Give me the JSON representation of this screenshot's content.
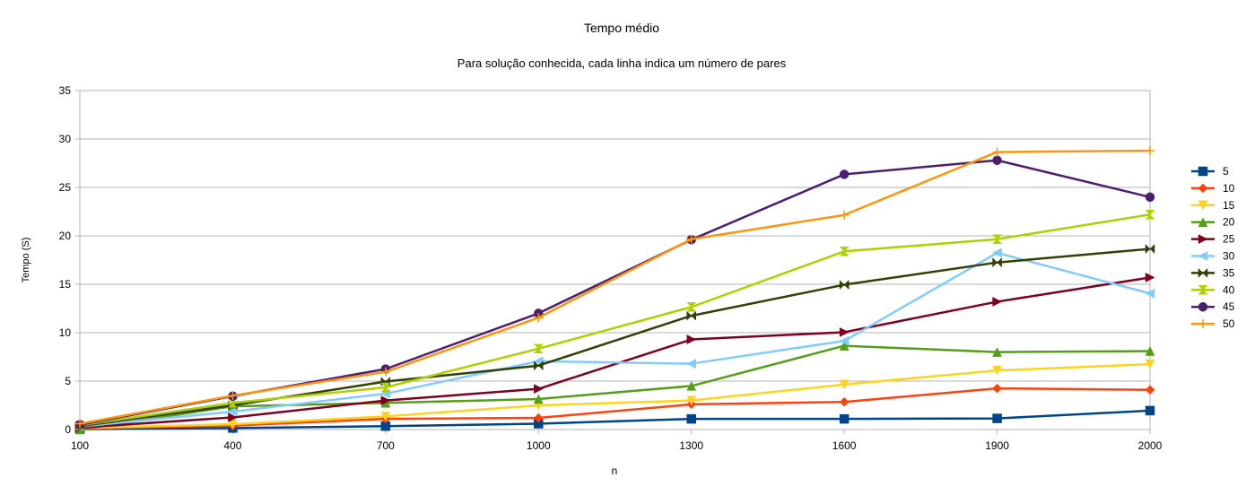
{
  "chart_data": {
    "type": "line",
    "title": "Tempo médio",
    "subtitle": "Para solução conhecida, cada linha indica um número de pares",
    "xlabel": "n",
    "ylabel": "Tempo (S)",
    "x": [
      "100",
      "400",
      "700",
      "1000",
      "1300",
      "1600",
      "1900",
      "2000"
    ],
    "ylim": [
      0,
      35
    ],
    "yticks": [
      "0",
      "5",
      "10",
      "15",
      "20",
      "25",
      "30",
      "35"
    ],
    "grid": "horizontal",
    "legend_position": "right",
    "series": [
      {
        "name": "5",
        "color": "#004586",
        "marker": "square",
        "values": [
          0.05,
          0.15,
          0.35,
          0.6,
          1.1,
          1.1,
          1.15,
          1.95
        ]
      },
      {
        "name": "10",
        "color": "#ff420e",
        "marker": "diamond",
        "values": [
          0.1,
          0.4,
          1.1,
          1.2,
          2.6,
          2.85,
          4.25,
          4.1
        ]
      },
      {
        "name": "15",
        "color": "#ffd320",
        "marker": "triangle-down",
        "values": [
          0.15,
          0.55,
          1.35,
          2.5,
          3.0,
          4.65,
          6.1,
          6.75
        ]
      },
      {
        "name": "20",
        "color": "#579d1c",
        "marker": "triangle-up",
        "values": [
          0.0,
          2.4,
          2.75,
          3.15,
          4.5,
          8.65,
          8.0,
          8.1
        ]
      },
      {
        "name": "25",
        "color": "#7e0021",
        "marker": "triangle-right",
        "values": [
          0.2,
          1.25,
          3.0,
          4.2,
          9.3,
          10.05,
          13.2,
          15.7
        ]
      },
      {
        "name": "30",
        "color": "#83caff",
        "marker": "triangle-left",
        "values": [
          0.3,
          1.85,
          3.7,
          7.05,
          6.8,
          9.15,
          18.25,
          14.05
        ]
      },
      {
        "name": "35",
        "color": "#314004",
        "marker": "bowtie",
        "values": [
          0.35,
          2.5,
          4.95,
          6.6,
          11.75,
          14.95,
          17.25,
          18.65
        ]
      },
      {
        "name": "40",
        "color": "#aecf00",
        "marker": "hourglass",
        "values": [
          0.45,
          2.75,
          4.35,
          8.35,
          12.65,
          18.4,
          19.65,
          22.2
        ]
      },
      {
        "name": "45",
        "color": "#4b1f6f",
        "marker": "circle",
        "values": [
          0.5,
          3.45,
          6.25,
          12.0,
          19.6,
          26.35,
          27.8,
          24.0
        ]
      },
      {
        "name": "50",
        "color": "#ff950e",
        "marker": "star",
        "values": [
          0.6,
          3.5,
          5.95,
          11.55,
          19.65,
          22.15,
          28.65,
          28.8
        ]
      }
    ]
  }
}
